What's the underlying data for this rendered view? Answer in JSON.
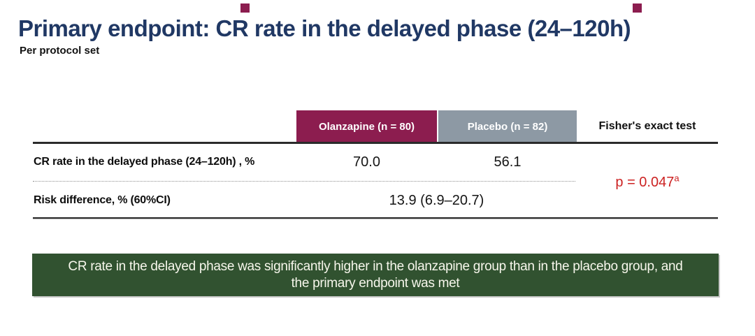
{
  "slide": {
    "title": "Primary endpoint: CR rate in the delayed phase (24–120h)",
    "subtitle": "Per protocol set"
  },
  "table": {
    "columns": [
      {
        "label": "Olanzapine (n = 80)",
        "bg": "#8c1d4f"
      },
      {
        "label": "Placebo (n = 82)",
        "bg": "#8d99a4"
      },
      {
        "label": "Fisher's exact test",
        "bg": "none"
      }
    ],
    "rows": [
      {
        "label": "CR rate in the delayed phase (24–120h) , %",
        "olanzapine": "70.0",
        "placebo": "56.1"
      },
      {
        "label": "Risk difference, % (60%CI)",
        "combined": "13.9 (6.9–20.7)"
      }
    ],
    "p_value": {
      "text": "p = 0.047",
      "superscript": "a",
      "color": "#cc2222"
    }
  },
  "banner": {
    "text": "CR rate in the delayed phase was significantly higher in the olanzapine group than in the placebo group, and the primary endpoint was met",
    "bg": "#315230"
  },
  "colors": {
    "title_navy": "#203864",
    "olanzapine_maroon": "#8c1d4f",
    "placebo_gray": "#8d99a4",
    "p_value_red": "#cc2222",
    "banner_green": "#315230"
  }
}
